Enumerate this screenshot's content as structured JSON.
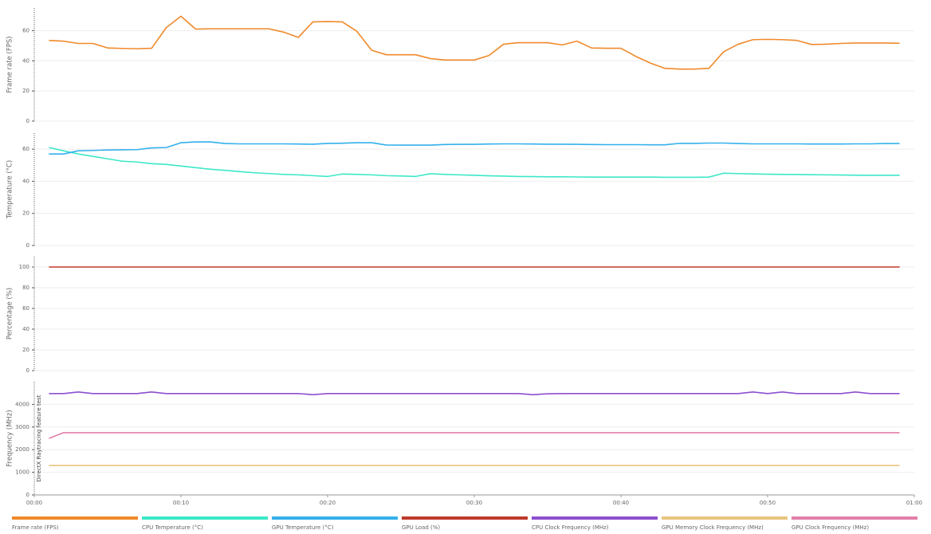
{
  "chart_data": [
    {
      "type": "line",
      "ylabel": "Frame rate (FPS)",
      "xlim": [
        0,
        60
      ],
      "ylim": [
        0,
        75
      ],
      "yticks": [
        0,
        20,
        40,
        60
      ],
      "grid": true,
      "x": [
        1,
        2,
        3,
        4,
        5,
        6,
        7,
        8,
        9,
        10,
        11,
        12,
        13,
        14,
        15,
        16,
        17,
        18,
        19,
        20,
        21,
        22,
        23,
        24,
        25,
        26,
        27,
        28,
        29,
        30,
        31,
        32,
        33,
        34,
        35,
        36,
        37,
        38,
        39,
        40,
        41,
        42,
        43,
        44,
        45,
        46,
        47,
        48,
        49,
        50,
        51,
        52,
        53,
        54,
        55,
        56,
        57,
        58,
        59
      ],
      "series": [
        {
          "name": "Frame rate (FPS)",
          "color": "#f08a2c",
          "values": [
            53.5,
            53,
            51.5,
            51.5,
            48.5,
            48.2,
            48,
            48.3,
            62,
            69.5,
            61,
            61.2,
            61.2,
            61.2,
            61.2,
            61.2,
            59,
            55.5,
            65.8,
            66,
            65.8,
            59.5,
            47,
            44,
            44,
            44,
            41.5,
            40.5,
            40.5,
            40.5,
            43.5,
            51,
            52,
            52,
            52,
            50.5,
            53,
            48.5,
            48.3,
            48.3,
            43,
            38.5,
            35,
            34.5,
            34.5,
            35,
            46,
            51,
            54,
            54.2,
            54,
            53.5,
            50.8,
            51,
            51.5,
            51.8,
            51.8,
            51.8,
            51.6
          ]
        }
      ]
    },
    {
      "type": "line",
      "ylabel": "Temperature (°C)",
      "xlim": [
        0,
        60
      ],
      "ylim": [
        0,
        70
      ],
      "yticks": [
        0,
        20,
        40,
        60
      ],
      "grid": true,
      "x": [
        1,
        2,
        3,
        4,
        5,
        6,
        7,
        8,
        9,
        10,
        11,
        12,
        13,
        14,
        15,
        16,
        17,
        18,
        19,
        20,
        21,
        22,
        23,
        24,
        25,
        26,
        27,
        28,
        29,
        30,
        31,
        32,
        33,
        34,
        35,
        36,
        37,
        38,
        39,
        40,
        41,
        42,
        43,
        44,
        45,
        46,
        47,
        48,
        49,
        50,
        51,
        52,
        53,
        54,
        55,
        56,
        57,
        58,
        59
      ],
      "series": [
        {
          "name": "CPU Temperature (°C)",
          "color": "#3de8c8",
          "values": [
            61,
            59,
            57,
            55.5,
            54,
            52.5,
            52,
            51,
            50.5,
            49.5,
            48.5,
            47.5,
            46.8,
            46,
            45.3,
            44.8,
            44.3,
            44,
            43.5,
            43,
            44.5,
            44.3,
            44,
            43.5,
            43.3,
            43,
            44.7,
            44.3,
            44,
            43.7,
            43.4,
            43.2,
            43,
            42.9,
            42.8,
            42.8,
            42.7,
            42.6,
            42.6,
            42.6,
            42.6,
            42.6,
            42.5,
            42.5,
            42.5,
            42.6,
            45,
            44.8,
            44.6,
            44.4,
            44.3,
            44.2,
            44.1,
            44,
            43.9,
            43.8,
            43.7,
            43.7,
            43.7
          ]
        },
        {
          "name": "GPU Temperature (°C)",
          "color": "#33b0ec",
          "values": [
            57,
            57,
            59,
            59.2,
            59.5,
            59.6,
            59.7,
            60.8,
            61,
            64,
            64.5,
            64.5,
            63.5,
            63.3,
            63.3,
            63.3,
            63.3,
            63.2,
            63.1,
            63.6,
            63.7,
            64,
            64,
            62.6,
            62.5,
            62.5,
            62.5,
            62.9,
            63,
            63,
            63.2,
            63.3,
            63.3,
            63.2,
            63.1,
            63.1,
            63,
            62.9,
            62.8,
            62.8,
            62.8,
            62.7,
            62.7,
            63.6,
            63.6,
            63.8,
            63.8,
            63.5,
            63.3,
            63.3,
            63.3,
            63.3,
            63.2,
            63.2,
            63.2,
            63.3,
            63.3,
            63.5,
            63.5
          ]
        }
      ]
    },
    {
      "type": "line",
      "ylabel": "Percentage (%)",
      "xlim": [
        0,
        60
      ],
      "ylim": [
        0,
        110
      ],
      "yticks": [
        0,
        20,
        40,
        60,
        80,
        100
      ],
      "grid": true,
      "x": [
        1,
        2,
        3,
        4,
        5,
        6,
        7,
        8,
        9,
        10,
        11,
        12,
        13,
        14,
        15,
        16,
        17,
        18,
        19,
        20,
        21,
        22,
        23,
        24,
        25,
        26,
        27,
        28,
        29,
        30,
        31,
        32,
        33,
        34,
        35,
        36,
        37,
        38,
        39,
        40,
        41,
        42,
        43,
        44,
        45,
        46,
        47,
        48,
        49,
        50,
        51,
        52,
        53,
        54,
        55,
        56,
        57,
        58,
        59
      ],
      "series": [
        {
          "name": "GPU Load (%)",
          "color": "#c0392b",
          "values": [
            100,
            100,
            100,
            100,
            100,
            100,
            100,
            100,
            100,
            100,
            100,
            100,
            100,
            100,
            100,
            100,
            100,
            100,
            100,
            100,
            100,
            100,
            100,
            100,
            100,
            100,
            100,
            100,
            100,
            100,
            100,
            100,
            100,
            100,
            100,
            100,
            100,
            100,
            100,
            100,
            100,
            100,
            100,
            100,
            100,
            100,
            100,
            100,
            100,
            100,
            100,
            100,
            100,
            100,
            100,
            100,
            100,
            100,
            100
          ]
        }
      ]
    },
    {
      "type": "line",
      "ylabel": "Frequency (MHz)",
      "annotation": "DirectX Raytracing feature test",
      "xlim": [
        0,
        60
      ],
      "ylim": [
        0,
        5000
      ],
      "yticks": [
        0,
        1000,
        2000,
        3000,
        4000
      ],
      "grid": true,
      "xticks": [
        {
          "value": 0,
          "label": "00:00"
        },
        {
          "value": 10,
          "label": "00:10"
        },
        {
          "value": 20,
          "label": "00:20"
        },
        {
          "value": 30,
          "label": "00:30"
        },
        {
          "value": 40,
          "label": "00:40"
        },
        {
          "value": 50,
          "label": "00:50"
        },
        {
          "value": 60,
          "label": "01:00"
        }
      ],
      "x": [
        1,
        2,
        3,
        4,
        5,
        6,
        7,
        8,
        9,
        10,
        11,
        12,
        13,
        14,
        15,
        16,
        17,
        18,
        19,
        20,
        21,
        22,
        23,
        24,
        25,
        26,
        27,
        28,
        29,
        30,
        31,
        32,
        33,
        34,
        35,
        36,
        37,
        38,
        39,
        40,
        41,
        42,
        43,
        44,
        45,
        46,
        47,
        48,
        49,
        50,
        51,
        52,
        53,
        54,
        55,
        56,
        57,
        58,
        59
      ],
      "series": [
        {
          "name": "CPU Clock Frequency (MHz)",
          "color": "#8e4fd1",
          "values": [
            4480,
            4480,
            4550,
            4480,
            4480,
            4480,
            4480,
            4550,
            4480,
            4480,
            4480,
            4480,
            4480,
            4480,
            4480,
            4480,
            4480,
            4480,
            4430,
            4480,
            4480,
            4480,
            4480,
            4480,
            4480,
            4480,
            4480,
            4480,
            4480,
            4480,
            4480,
            4480,
            4480,
            4430,
            4470,
            4480,
            4480,
            4480,
            4480,
            4480,
            4480,
            4480,
            4480,
            4480,
            4480,
            4480,
            4480,
            4480,
            4550,
            4480,
            4550,
            4480,
            4480,
            4480,
            4480,
            4550,
            4480,
            4480,
            4480
          ]
        },
        {
          "name": "GPU Memory Clock Frequency (MHz)",
          "color": "#e8c680",
          "values": [
            1300,
            1300,
            1300,
            1300,
            1300,
            1300,
            1300,
            1300,
            1300,
            1300,
            1300,
            1300,
            1300,
            1300,
            1300,
            1300,
            1300,
            1300,
            1300,
            1300,
            1300,
            1300,
            1300,
            1300,
            1300,
            1300,
            1300,
            1300,
            1300,
            1300,
            1300,
            1300,
            1300,
            1300,
            1300,
            1300,
            1300,
            1300,
            1300,
            1300,
            1300,
            1300,
            1300,
            1300,
            1300,
            1300,
            1300,
            1300,
            1300,
            1300,
            1300,
            1300,
            1300,
            1300,
            1300,
            1300,
            1300,
            1300,
            1300
          ]
        },
        {
          "name": "GPU Clock Frequency (MHz)",
          "color": "#e27fa8",
          "values": [
            2500,
            2750,
            2750,
            2750,
            2750,
            2750,
            2750,
            2750,
            2750,
            2750,
            2750,
            2750,
            2750,
            2750,
            2750,
            2750,
            2750,
            2750,
            2750,
            2750,
            2750,
            2750,
            2750,
            2750,
            2750,
            2750,
            2750,
            2750,
            2750,
            2750,
            2750,
            2750,
            2750,
            2750,
            2750,
            2750,
            2750,
            2750,
            2750,
            2750,
            2750,
            2750,
            2750,
            2750,
            2750,
            2750,
            2750,
            2750,
            2750,
            2750,
            2750,
            2750,
            2750,
            2750,
            2750,
            2750,
            2750,
            2750,
            2750
          ]
        }
      ]
    }
  ]
}
